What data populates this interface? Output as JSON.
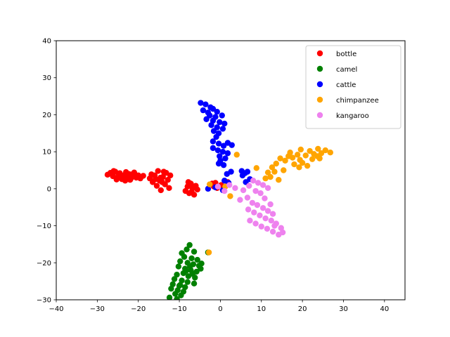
{
  "chart_data": {
    "type": "scatter",
    "title": "",
    "xlabel": "",
    "ylabel": "",
    "xlim": [
      -40,
      45
    ],
    "ylim": [
      -30,
      40
    ],
    "xticks": [
      -40,
      -30,
      -20,
      -10,
      0,
      10,
      20,
      30,
      40
    ],
    "yticks": [
      -30,
      -20,
      -10,
      0,
      10,
      20,
      30,
      40
    ],
    "grid": false,
    "legend_position": "top-right",
    "series": [
      {
        "name": "bottle",
        "color": "#ff0000",
        "points": [
          [
            -27.5,
            3.8
          ],
          [
            -26.8,
            4.3
          ],
          [
            -26.2,
            3.4
          ],
          [
            -25.6,
            4.6
          ],
          [
            -25.0,
            3.0
          ],
          [
            -24.5,
            4.2
          ],
          [
            -24.0,
            2.6
          ],
          [
            -23.5,
            3.6
          ],
          [
            -23.0,
            4.5
          ],
          [
            -22.6,
            3.1
          ],
          [
            -22.0,
            2.4
          ],
          [
            -21.5,
            3.9
          ],
          [
            -21.0,
            4.4
          ],
          [
            -20.5,
            3.0
          ],
          [
            -20.0,
            3.6
          ],
          [
            -19.5,
            2.8
          ],
          [
            -18.8,
            3.5
          ],
          [
            -25.3,
            2.5
          ],
          [
            -23.8,
            3.0
          ],
          [
            -22.3,
            4.0
          ],
          [
            -24.8,
            3.7
          ],
          [
            -21.8,
            2.8
          ],
          [
            -23.2,
            2.2
          ],
          [
            -26.0,
            4.8
          ],
          [
            -17.2,
            2.8
          ],
          [
            -16.5,
            1.8
          ],
          [
            -16.0,
            3.6
          ],
          [
            -15.5,
            0.8
          ],
          [
            -15.2,
            4.8
          ],
          [
            -14.8,
            2.2
          ],
          [
            -14.5,
            -0.4
          ],
          [
            -14.0,
            3.2
          ],
          [
            -13.5,
            1.2
          ],
          [
            -13.2,
            4.3
          ],
          [
            -12.8,
            2.4
          ],
          [
            -12.5,
            0.2
          ],
          [
            -12.2,
            3.6
          ],
          [
            -14.2,
            1.8
          ],
          [
            -15.8,
            2.6
          ],
          [
            -16.8,
            3.9
          ],
          [
            -13.8,
            4.6
          ],
          [
            -14.6,
            3.0
          ],
          [
            -8.5,
            -0.6
          ],
          [
            -8.0,
            0.6
          ],
          [
            -7.6,
            -1.2
          ],
          [
            -7.2,
            1.4
          ],
          [
            -6.8,
            0.2
          ],
          [
            -6.4,
            -1.6
          ],
          [
            -6.0,
            0.8
          ],
          [
            -5.6,
            -0.2
          ],
          [
            -7.8,
            1.8
          ],
          [
            -7.0,
            -0.8
          ],
          [
            -1.6,
            0.6
          ],
          [
            -1.2,
            1.6
          ],
          [
            -0.8,
            0.2
          ],
          [
            0.2,
            1.0
          ],
          [
            1.8,
            1.8
          ],
          [
            -2.0,
            1.4
          ]
        ]
      },
      {
        "name": "camel",
        "color": "#008000",
        "points": [
          [
            -7.5,
            -15.2
          ],
          [
            -8.2,
            -16.4
          ],
          [
            -6.4,
            -17.0
          ],
          [
            -9.4,
            -17.4
          ],
          [
            -8.8,
            -18.4
          ],
          [
            -7.0,
            -18.8
          ],
          [
            -5.6,
            -19.2
          ],
          [
            -9.8,
            -19.6
          ],
          [
            -8.0,
            -20.0
          ],
          [
            -6.6,
            -20.4
          ],
          [
            -5.2,
            -20.8
          ],
          [
            -10.2,
            -21.0
          ],
          [
            -8.6,
            -21.6
          ],
          [
            -7.2,
            -22.0
          ],
          [
            -5.8,
            -22.4
          ],
          [
            -9.0,
            -22.8
          ],
          [
            -10.6,
            -23.2
          ],
          [
            -7.8,
            -23.6
          ],
          [
            -6.2,
            -24.0
          ],
          [
            -11.2,
            -24.4
          ],
          [
            -9.4,
            -24.8
          ],
          [
            -8.0,
            -25.2
          ],
          [
            -6.4,
            -25.6
          ],
          [
            -11.6,
            -25.8
          ],
          [
            -10.0,
            -26.2
          ],
          [
            -8.6,
            -26.6
          ],
          [
            -12.0,
            -27.0
          ],
          [
            -10.4,
            -27.4
          ],
          [
            -9.0,
            -27.8
          ],
          [
            -11.0,
            -28.4
          ],
          [
            -9.6,
            -28.8
          ],
          [
            -12.4,
            -29.4
          ],
          [
            -10.6,
            -29.8
          ],
          [
            -4.8,
            -21.6
          ],
          [
            -4.6,
            -20.2
          ],
          [
            -3.0,
            -17.2
          ],
          [
            -7.4,
            -21.0
          ],
          [
            -8.4,
            -22.2
          ],
          [
            -6.8,
            -23.0
          ],
          [
            -9.8,
            -26.0
          ]
        ]
      },
      {
        "name": "cattle",
        "color": "#0000ff",
        "points": [
          [
            -4.8,
            23.2
          ],
          [
            -3.6,
            22.8
          ],
          [
            -2.4,
            22.0
          ],
          [
            -4.2,
            21.2
          ],
          [
            -1.8,
            21.6
          ],
          [
            -3.0,
            20.6
          ],
          [
            -0.8,
            20.8
          ],
          [
            -2.6,
            19.8
          ],
          [
            -1.2,
            19.4
          ],
          [
            0.4,
            19.8
          ],
          [
            -3.4,
            18.8
          ],
          [
            -1.8,
            18.4
          ],
          [
            -0.2,
            18.0
          ],
          [
            1.0,
            17.6
          ],
          [
            -2.2,
            17.2
          ],
          [
            -0.8,
            16.6
          ],
          [
            0.6,
            16.2
          ],
          [
            -1.6,
            15.6
          ],
          [
            -0.4,
            15.0
          ],
          [
            -1.0,
            14.0
          ],
          [
            -1.8,
            12.8
          ],
          [
            -0.4,
            12.2
          ],
          [
            0.8,
            11.6
          ],
          [
            1.8,
            12.4
          ],
          [
            -1.8,
            11.0
          ],
          [
            -0.6,
            10.4
          ],
          [
            0.6,
            10.0
          ],
          [
            1.8,
            9.6
          ],
          [
            -0.2,
            8.8
          ],
          [
            1.2,
            8.2
          ],
          [
            0.0,
            7.6
          ],
          [
            -0.4,
            6.8
          ],
          [
            0.8,
            6.4
          ],
          [
            2.8,
            11.8
          ],
          [
            1.6,
            4.0
          ],
          [
            2.6,
            4.6
          ],
          [
            5.2,
            4.8
          ],
          [
            6.0,
            4.2
          ],
          [
            6.6,
            4.6
          ],
          [
            5.4,
            3.6
          ],
          [
            6.2,
            1.8
          ],
          [
            7.2,
            2.6
          ],
          [
            2.0,
            1.6
          ],
          [
            1.0,
            2.2
          ],
          [
            -3.0,
            0.0
          ],
          [
            -1.2,
            0.4
          ],
          [
            0.6,
            -0.4
          ]
        ]
      },
      {
        "name": "chimpanzee",
        "color": "#ffa500",
        "points": [
          [
            26.8,
            9.8
          ],
          [
            25.6,
            10.4
          ],
          [
            24.6,
            9.6
          ],
          [
            23.8,
            10.8
          ],
          [
            22.8,
            9.4
          ],
          [
            21.8,
            10.2
          ],
          [
            20.8,
            9.0
          ],
          [
            19.6,
            10.6
          ],
          [
            18.8,
            9.2
          ],
          [
            17.6,
            8.4
          ],
          [
            16.6,
            8.8
          ],
          [
            15.8,
            7.6
          ],
          [
            14.6,
            8.2
          ],
          [
            13.6,
            6.8
          ],
          [
            12.6,
            5.8
          ],
          [
            11.6,
            4.4
          ],
          [
            11.0,
            2.8
          ],
          [
            12.2,
            3.2
          ],
          [
            13.2,
            4.6
          ],
          [
            14.2,
            2.4
          ],
          [
            20.0,
            7.0
          ],
          [
            21.2,
            6.2
          ],
          [
            19.2,
            5.8
          ],
          [
            18.0,
            6.6
          ],
          [
            22.4,
            8.0
          ],
          [
            23.6,
            8.8
          ],
          [
            17.0,
            9.8
          ],
          [
            24.2,
            8.2
          ],
          [
            15.4,
            5.0
          ],
          [
            19.4,
            7.8
          ],
          [
            4.0,
            9.2
          ],
          [
            8.8,
            5.6
          ],
          [
            2.4,
            -2.0
          ],
          [
            -2.6,
            1.2
          ],
          [
            -2.8,
            -17.2
          ],
          [
            1.2,
            0.6
          ]
        ]
      },
      {
        "name": "kangaroo",
        "color": "#ee82ee",
        "points": [
          [
            8.0,
            2.2
          ],
          [
            9.2,
            1.6
          ],
          [
            10.4,
            1.0
          ],
          [
            11.6,
            0.2
          ],
          [
            7.0,
            0.8
          ],
          [
            8.6,
            -0.6
          ],
          [
            9.8,
            -1.2
          ],
          [
            5.6,
            -0.4
          ],
          [
            4.8,
            -3.0
          ],
          [
            6.6,
            -2.4
          ],
          [
            7.8,
            -3.8
          ],
          [
            9.0,
            -4.4
          ],
          [
            10.4,
            -5.2
          ],
          [
            11.6,
            -6.0
          ],
          [
            12.8,
            -6.8
          ],
          [
            6.8,
            -5.6
          ],
          [
            8.2,
            -6.4
          ],
          [
            9.6,
            -7.2
          ],
          [
            11.0,
            -8.0
          ],
          [
            12.4,
            -8.6
          ],
          [
            13.6,
            -9.4
          ],
          [
            7.2,
            -8.6
          ],
          [
            8.6,
            -9.4
          ],
          [
            10.0,
            -10.2
          ],
          [
            11.4,
            -10.8
          ],
          [
            12.8,
            -11.6
          ],
          [
            14.2,
            -12.4
          ],
          [
            15.2,
            -11.8
          ],
          [
            14.8,
            -10.6
          ],
          [
            13.2,
            -10.0
          ],
          [
            2.2,
            1.0
          ],
          [
            3.6,
            0.2
          ],
          [
            1.0,
            -0.6
          ],
          [
            -0.6,
            0.6
          ],
          [
            10.8,
            -2.6
          ],
          [
            12.2,
            -4.2
          ]
        ]
      }
    ]
  }
}
